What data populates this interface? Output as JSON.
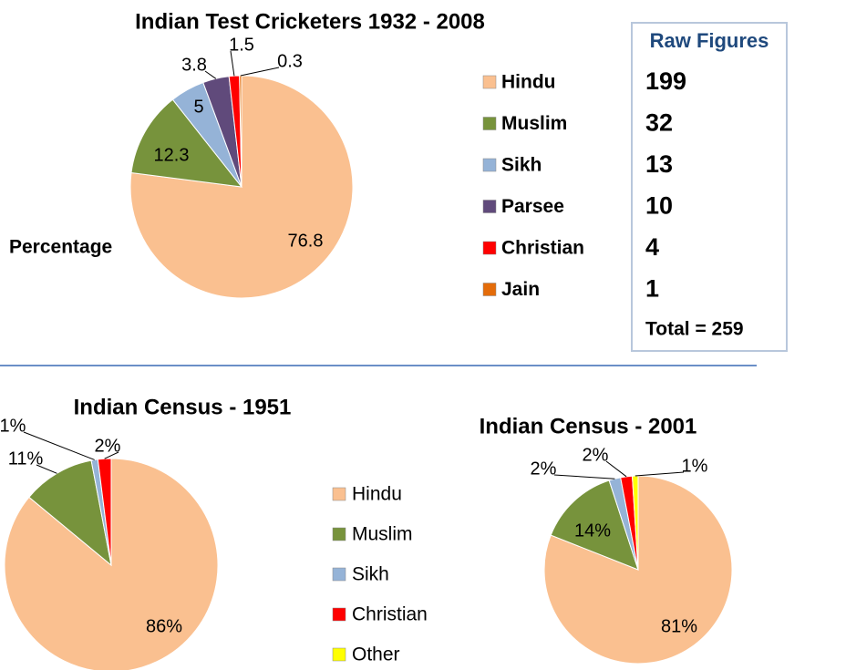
{
  "chart_data": [
    {
      "type": "pie",
      "title": "Indian Test Cricketers 1932 - 2008",
      "label": "Percentage",
      "categories": [
        "Hindu",
        "Muslim",
        "Sikh",
        "Parsee",
        "Christian",
        "Jain"
      ],
      "values": [
        76.8,
        12.3,
        5,
        3.8,
        1.5,
        0.3
      ],
      "colors": [
        "#fac090",
        "#77933c",
        "#95b3d7",
        "#604a7b",
        "#ff0000",
        "#e46c0a"
      ],
      "raw_figures": {
        "title": "Raw Figures",
        "values": [
          199,
          32,
          13,
          10,
          4,
          1
        ],
        "total": "Total = 259"
      }
    },
    {
      "type": "pie",
      "title": "Indian Census - 1951",
      "categories": [
        "Hindu",
        "Muslim",
        "Sikh",
        "Christian"
      ],
      "values": [
        86,
        11,
        1,
        2
      ],
      "value_labels": [
        "86%",
        "11%",
        "1%",
        "2%"
      ],
      "colors": [
        "#fac090",
        "#77933c",
        "#95b3d7",
        "#ff0000"
      ]
    },
    {
      "type": "pie",
      "title": "Indian Census - 2001",
      "categories": [
        "Hindu",
        "Muslim",
        "Sikh",
        "Christian",
        "Other"
      ],
      "values": [
        81,
        14,
        2,
        2,
        1
      ],
      "value_labels": [
        "81%",
        "14%",
        "2%",
        "2%",
        "1%"
      ],
      "colors": [
        "#fac090",
        "#77933c",
        "#95b3d7",
        "#ff0000",
        "#ffff00"
      ]
    }
  ]
}
